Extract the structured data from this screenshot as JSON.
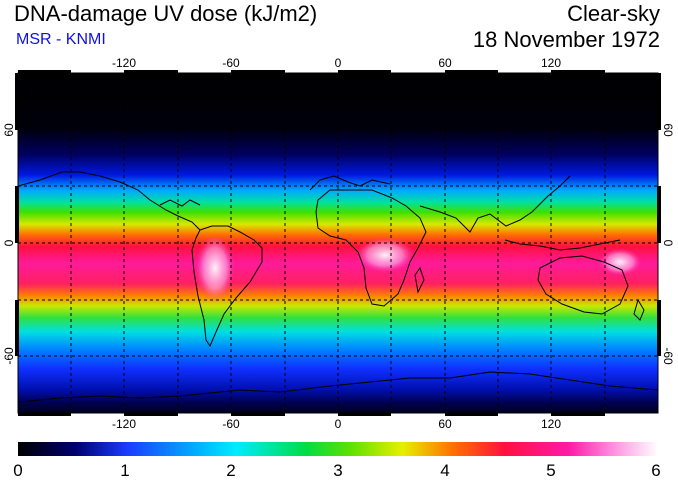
{
  "header": {
    "title": "DNA-damage UV dose (kJ/m2)",
    "source": "MSR - KNMI",
    "condition": "Clear-sky",
    "date": "18 November 1972"
  },
  "colors": {
    "source_text": "#1010e0",
    "scale": [
      "#000000",
      "#000080",
      "#1a3cff",
      "#00e8ff",
      "#00dd44",
      "#e6f000",
      "#ff7000",
      "#ff1040",
      "#ff1aa8",
      "#ffffff"
    ]
  },
  "map": {
    "lon_ticks": [
      "-120",
      "-60",
      "0",
      "60",
      "120"
    ],
    "lat_ticks": [
      "60",
      "0",
      "-60"
    ]
  },
  "colorbar": {
    "min": 0,
    "max": 6,
    "labels": [
      "0",
      "1",
      "2",
      "3",
      "4",
      "5",
      "6"
    ]
  }
}
